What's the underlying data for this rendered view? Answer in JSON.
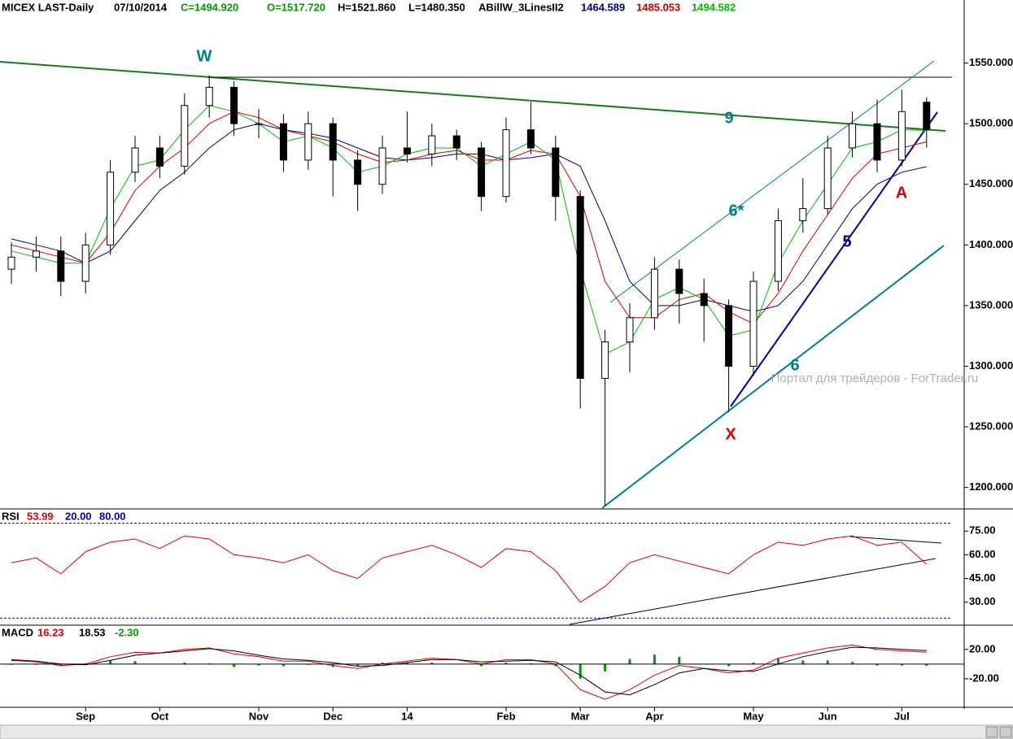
{
  "chart_data": [
    {
      "type": "candlestick",
      "title": "MICEX LAST-Daily",
      "date": "07/10/2014",
      "header": [
        {
          "label": "C=1494.920",
          "color": "#009900"
        },
        {
          "label": "O=1517.720",
          "color": "#009900"
        },
        {
          "label": "H=1521.860",
          "color": "#000000"
        },
        {
          "label": "L=1480.350",
          "color": "#000000"
        }
      ],
      "indicator": "ABillW_3LinesII2",
      "categories": [
        null,
        null,
        null,
        "Sep",
        null,
        null,
        "Oct",
        null,
        null,
        null,
        "Nov",
        null,
        null,
        "Dec",
        null,
        null,
        "14",
        null,
        null,
        null,
        "Feb",
        null,
        null,
        "Mar",
        null,
        null,
        "Apr",
        null,
        null,
        null,
        "May",
        null,
        null,
        "Jun",
        null,
        null,
        "Jul",
        null
      ],
      "open": [
        1380,
        1390,
        1395,
        1370,
        1400,
        1460,
        1480,
        1465,
        1515,
        1530,
        1500,
        1500,
        1470,
        1500,
        1470,
        1450,
        1480,
        1475,
        1490,
        1480,
        1440,
        1495,
        1480,
        1440,
        1290,
        1320,
        1340,
        1380,
        1360,
        1350,
        1300,
        1370,
        1420,
        1430,
        1480,
        1500,
        1470,
        1517.72
      ],
      "high": [
        1402,
        1407,
        1407,
        1410,
        1470,
        1490,
        1490,
        1525,
        1540,
        1535,
        1512,
        1508,
        1510,
        1505,
        1478,
        1490,
        1510,
        1500,
        1495,
        1485,
        1505,
        1518,
        1490,
        1445,
        1330,
        1352,
        1390,
        1388,
        1372,
        1355,
        1378,
        1430,
        1455,
        1490,
        1510,
        1520,
        1528,
        1521.86
      ],
      "low": [
        1368,
        1378,
        1358,
        1360,
        1392,
        1452,
        1455,
        1458,
        1505,
        1490,
        1488,
        1460,
        1462,
        1440,
        1428,
        1442,
        1468,
        1465,
        1470,
        1428,
        1435,
        1475,
        1420,
        1265,
        1185,
        1295,
        1330,
        1335,
        1320,
        1262,
        1292,
        1362,
        1410,
        1425,
        1472,
        1460,
        1465,
        1480.35
      ],
      "close": [
        1390,
        1395,
        1370,
        1400,
        1460,
        1480,
        1465,
        1515,
        1530,
        1500,
        1500,
        1470,
        1500,
        1470,
        1450,
        1480,
        1475,
        1490,
        1480,
        1440,
        1495,
        1480,
        1440,
        1290,
        1320,
        1340,
        1380,
        1360,
        1350,
        1300,
        1370,
        1420,
        1430,
        1480,
        1500,
        1470,
        1510,
        1494.92
      ],
      "series": [
        {
          "color": "#000080",
          "value_label": "1464.589",
          "values": [
            1405,
            1400,
            1395,
            1385,
            1395,
            1420,
            1445,
            1460,
            1480,
            1495,
            1500,
            1495,
            1492,
            1488,
            1480,
            1472,
            1470,
            1472,
            1475,
            1475,
            1470,
            1472,
            1475,
            1465,
            1420,
            1370,
            1350,
            1350,
            1355,
            1350,
            1345,
            1350,
            1370,
            1400,
            1430,
            1450,
            1460,
            1464.589
          ]
        },
        {
          "color": "#cc0000",
          "value_label": "1485.053",
          "values": [
            1400,
            1395,
            1390,
            1385,
            1410,
            1445,
            1465,
            1480,
            1500,
            1510,
            1505,
            1495,
            1490,
            1485,
            1475,
            1468,
            1470,
            1475,
            1478,
            1470,
            1470,
            1478,
            1475,
            1440,
            1370,
            1340,
            1340,
            1355,
            1360,
            1345,
            1335,
            1360,
            1395,
            1425,
            1455,
            1475,
            1480,
            1485.053
          ]
        },
        {
          "color": "#00bb00",
          "value_label": "1494.582",
          "values": [
            1395,
            1390,
            1385,
            1385,
            1430,
            1465,
            1470,
            1495,
            1515,
            1510,
            1500,
            1485,
            1490,
            1480,
            1460,
            1465,
            1475,
            1480,
            1480,
            1465,
            1475,
            1485,
            1470,
            1380,
            1310,
            1320,
            1355,
            1365,
            1355,
            1325,
            1330,
            1385,
            1420,
            1450,
            1480,
            1485,
            1495,
            1494.582
          ]
        }
      ],
      "ylim": [
        1183,
        1602
      ],
      "yticks": [
        {
          "value": 1200,
          "label": "1200.000"
        },
        {
          "value": 1250,
          "label": "1250.000"
        },
        {
          "value": 1300,
          "label": "1300.000"
        },
        {
          "value": 1350,
          "label": "1350.000"
        },
        {
          "value": 1400,
          "label": "1400.000"
        },
        {
          "value": 1450,
          "label": "1450.000"
        },
        {
          "value": 1500,
          "label": "1500.000"
        },
        {
          "value": 1550,
          "label": "1550.000"
        }
      ],
      "annotations": [
        "W",
        "9",
        "6*",
        "5",
        "6",
        "X",
        "A"
      ],
      "watermark": "Портал для трейдеров - ForTrader.ru"
    },
    {
      "type": "line",
      "title": "RSI",
      "series": [
        {
          "color": "#dd0000",
          "value_label": "53.99",
          "values": [
            55,
            58,
            48,
            62,
            68,
            70,
            64,
            72,
            70,
            60,
            58,
            55,
            60,
            50,
            45,
            58,
            62,
            66,
            60,
            52,
            64,
            62,
            50,
            30,
            40,
            55,
            60,
            56,
            52,
            48,
            60,
            68,
            66,
            70,
            72,
            66,
            68,
            53.99
          ]
        }
      ],
      "levels": [
        {
          "value": 20,
          "label": "20.00"
        },
        {
          "value": 80,
          "label": "80.00"
        }
      ],
      "ylim": [
        16,
        88
      ],
      "yticks": [
        {
          "value": 30,
          "label": "30.00"
        },
        {
          "value": 45,
          "label": "45.00"
        },
        {
          "value": 60,
          "label": "60.00"
        },
        {
          "value": 75,
          "label": "75.00"
        }
      ]
    },
    {
      "type": "macd",
      "title": "MACD",
      "series": [
        {
          "color": "#dd0000",
          "value_label": "16.23",
          "values": [
            5,
            3,
            -2,
            0,
            10,
            16,
            15,
            20,
            22,
            14,
            10,
            4,
            4,
            -2,
            -6,
            0,
            4,
            8,
            6,
            0,
            6,
            6,
            0,
            -35,
            -48,
            -35,
            -15,
            -2,
            -6,
            -12,
            -8,
            8,
            15,
            22,
            26,
            20,
            18,
            16.23
          ]
        },
        {
          "color": "#000000",
          "value_label": "18.53",
          "values": [
            6,
            4,
            0,
            -1,
            5,
            12,
            15,
            18,
            21,
            18,
            12,
            7,
            5,
            2,
            -3,
            -2,
            2,
            6,
            6,
            3,
            4,
            5,
            3,
            -15,
            -38,
            -42,
            -28,
            -12,
            -6,
            -9,
            -10,
            0,
            10,
            17,
            23,
            22,
            20,
            18.53
          ]
        }
      ],
      "histogram": {
        "color": "#009900",
        "value_label": "-2.30",
        "values": [
          -1,
          -1,
          -2,
          1,
          5,
          4,
          0,
          2,
          1,
          -4,
          -2,
          -3,
          -1,
          -4,
          -3,
          2,
          2,
          2,
          0,
          -3,
          2,
          1,
          -3,
          -20,
          -10,
          7,
          13,
          10,
          0,
          -3,
          2,
          8,
          5,
          5,
          3,
          -2,
          -2,
          -2.3
        ]
      },
      "ylim": [
        -59,
        52
      ],
      "yticks": [
        {
          "value": -20,
          "label": "-20.00"
        },
        {
          "value": 20,
          "label": "20.00"
        }
      ]
    }
  ]
}
